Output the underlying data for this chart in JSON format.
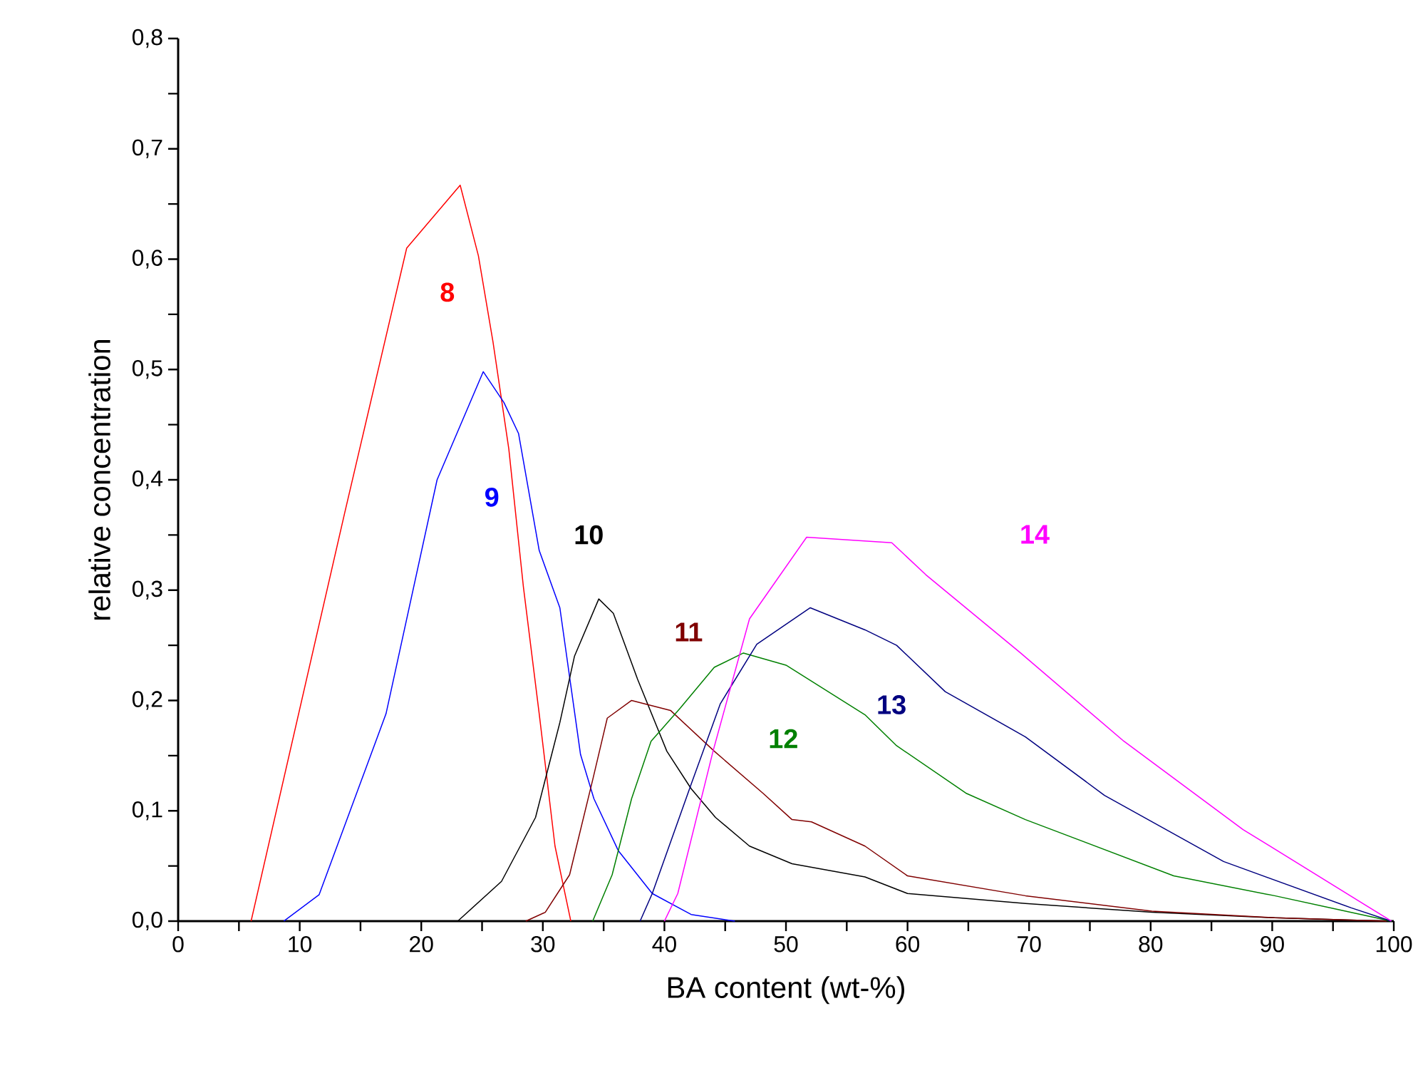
{
  "chart_data": {
    "type": "line",
    "xlabel": "BA content (wt-%)",
    "ylabel": "relative concentration",
    "xlim": [
      0,
      100
    ],
    "ylim": [
      0,
      0.8
    ],
    "xticks": [
      0,
      {
        "value": 5,
        "label": null
      },
      10,
      {
        "value": 15,
        "label": null
      },
      20,
      {
        "value": 25,
        "label": null
      },
      30,
      {
        "value": 35,
        "label": null
      },
      40,
      {
        "value": 45,
        "label": null
      },
      50,
      {
        "value": 55,
        "label": null
      },
      60,
      {
        "value": 65,
        "label": null
      },
      70,
      {
        "value": 75,
        "label": null
      },
      80,
      {
        "value": 85,
        "label": null
      },
      90,
      {
        "value": 95,
        "label": null
      },
      100
    ],
    "yticks": [
      {
        "value": 0,
        "label": "0,0"
      },
      {
        "value": 0.05,
        "label": null
      },
      {
        "value": 0.1,
        "label": "0,1"
      },
      {
        "value": 0.15,
        "label": null
      },
      {
        "value": 0.2,
        "label": "0,2"
      },
      {
        "value": 0.25,
        "label": null
      },
      {
        "value": 0.3,
        "label": "0,3"
      },
      {
        "value": 0.35,
        "label": null
      },
      {
        "value": 0.4,
        "label": "0,4"
      },
      {
        "value": 0.45,
        "label": null
      },
      {
        "value": 0.5,
        "label": "0,5"
      },
      {
        "value": 0.55,
        "label": null
      },
      {
        "value": 0.6,
        "label": "0,6"
      },
      {
        "value": 0.65,
        "label": null
      },
      {
        "value": 0.7,
        "label": "0,7"
      },
      {
        "value": 0.75,
        "label": null
      },
      {
        "value": 0.8,
        "label": "0,8"
      }
    ],
    "line_style": "solid",
    "series": [
      {
        "name": "8",
        "color": "#ff0000",
        "x": [
          6.0,
          13.7,
          18.8,
          23.2,
          24.7,
          25.9,
          27.2,
          28.4,
          29.7,
          31.0,
          32.3
        ],
        "values": [
          0,
          0.37,
          0.61,
          0.667,
          0.603,
          0.525,
          0.428,
          0.303,
          0.188,
          0.068,
          0
        ]
      },
      {
        "name": "9",
        "color": "#0000ff",
        "x": [
          8.7,
          11.6,
          17.1,
          21.3,
          25.1,
          26.8,
          28.0,
          29.7,
          31.4,
          33.1,
          34.2,
          36.2,
          39.0,
          42.2,
          45.8
        ],
        "values": [
          0,
          0.024,
          0.188,
          0.4,
          0.498,
          0.47,
          0.442,
          0.336,
          0.284,
          0.151,
          0.111,
          0.064,
          0.025,
          0.006,
          0
        ]
      },
      {
        "name": "10",
        "color": "#000000",
        "x": [
          21.8,
          23.0,
          26.6,
          29.4,
          31.4,
          32.6,
          34.6,
          35.8,
          37.8,
          40.2,
          42.2,
          44.2,
          47.0,
          50.5,
          56.5,
          60.0,
          69.7,
          80.1,
          90.2,
          99.4
        ],
        "values": [
          0,
          0,
          0.036,
          0.094,
          0.18,
          0.24,
          0.292,
          0.279,
          0.219,
          0.154,
          0.12,
          0.094,
          0.068,
          0.052,
          0.04,
          0.025,
          0.016,
          0.008,
          0.003,
          0
        ]
      },
      {
        "name": "11",
        "color": "#800000",
        "x": [
          28.6,
          30.2,
          32.2,
          34.1,
          35.3,
          37.3,
          40.5,
          44.1,
          48.1,
          50.5,
          52.1,
          56.5,
          60.0,
          69.7,
          80.1,
          90.2,
          99.4
        ],
        "values": [
          0,
          0.008,
          0.042,
          0.128,
          0.184,
          0.2,
          0.191,
          0.154,
          0.116,
          0.092,
          0.09,
          0.068,
          0.041,
          0.023,
          0.009,
          0.003,
          0
        ]
      },
      {
        "name": "12",
        "color": "#008000",
        "x": [
          34.1,
          35.7,
          37.3,
          38.9,
          41.3,
          44.1,
          46.5,
          50.0,
          56.5,
          59.1,
          64.8,
          69.7,
          81.9,
          90.2,
          99.8
        ],
        "values": [
          0,
          0.042,
          0.111,
          0.163,
          0.193,
          0.23,
          0.243,
          0.232,
          0.187,
          0.159,
          0.116,
          0.092,
          0.041,
          0.023,
          0
        ]
      },
      {
        "name": "13",
        "color": "#000080",
        "x": [
          38.0,
          39.0,
          42.2,
          44.6,
          47.6,
          52.0,
          56.5,
          59.1,
          63.1,
          69.7,
          76.2,
          86.0,
          96.5,
          99.8
        ],
        "values": [
          0,
          0.025,
          0.124,
          0.197,
          0.251,
          0.284,
          0.264,
          0.25,
          0.208,
          0.167,
          0.114,
          0.054,
          0.012,
          0
        ]
      },
      {
        "name": "14",
        "color": "#ff00ff",
        "x": [
          40.0,
          41.1,
          44.0,
          47.0,
          51.7,
          58.7,
          61.5,
          69.3,
          77.8,
          87.6,
          99.8
        ],
        "values": [
          0,
          0.025,
          0.154,
          0.274,
          0.348,
          0.343,
          0.314,
          0.243,
          0.163,
          0.083,
          0
        ]
      }
    ]
  }
}
